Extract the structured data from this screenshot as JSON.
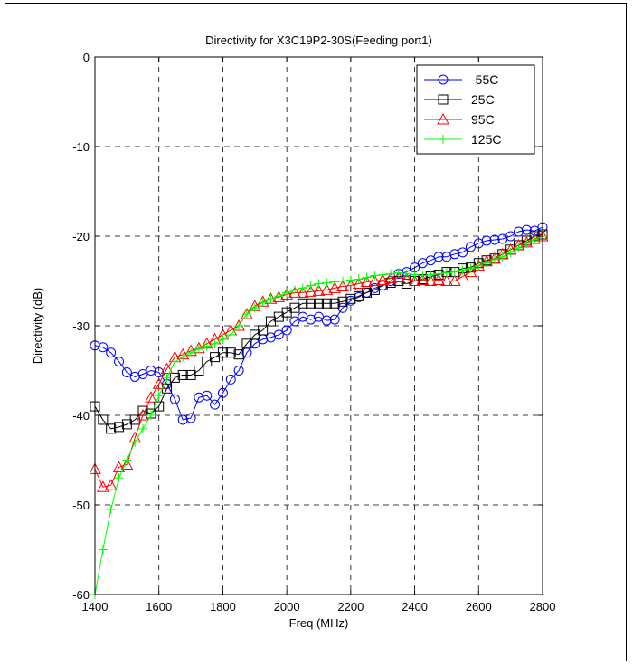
{
  "chart_data": {
    "type": "line",
    "title": "Directivity for X3C19P2-30S(Feeding port1)",
    "xlabel": "Freq (MHz)",
    "ylabel": "Directivity (dB)",
    "xlim": [
      1400,
      2800
    ],
    "ylim": [
      -60,
      0
    ],
    "xticks": [
      1400,
      1600,
      1800,
      2000,
      2200,
      2400,
      2600,
      2800
    ],
    "yticks": [
      0,
      -10,
      -20,
      -30,
      -40,
      -50,
      -60
    ],
    "xtick_labels": [
      "1400",
      "1600",
      "1800",
      "2000",
      "2200",
      "2400",
      "2600",
      "2800"
    ],
    "ytick_labels": [
      "0",
      "-10",
      "-20",
      "-30",
      "-40",
      "-50",
      "-60"
    ],
    "grid": true,
    "grid_style": "dashed",
    "legend_position": "top-right",
    "series": [
      {
        "name": "-55C",
        "color": "#0000ff",
        "marker": "circle",
        "x": [
          1400,
          1425,
          1450,
          1475,
          1500,
          1525,
          1550,
          1575,
          1600,
          1625,
          1650,
          1675,
          1700,
          1725,
          1750,
          1775,
          1800,
          1825,
          1850,
          1875,
          1900,
          1925,
          1950,
          1975,
          2000,
          2025,
          2050,
          2075,
          2100,
          2125,
          2150,
          2175,
          2200,
          2225,
          2250,
          2275,
          2300,
          2325,
          2350,
          2375,
          2400,
          2425,
          2450,
          2475,
          2500,
          2525,
          2550,
          2575,
          2600,
          2625,
          2650,
          2675,
          2700,
          2725,
          2750,
          2775,
          2800
        ],
        "y": [
          -32.2,
          -32.4,
          -33.0,
          -34.0,
          -35.2,
          -35.7,
          -35.4,
          -35.0,
          -35.2,
          -36.5,
          -38.2,
          -40.5,
          -40.3,
          -38.0,
          -37.8,
          -38.8,
          -37.5,
          -36.0,
          -35.0,
          -33.0,
          -32.0,
          -31.5,
          -31.3,
          -31.0,
          -30.5,
          -29.5,
          -29.0,
          -29.3,
          -29.0,
          -29.4,
          -29.3,
          -28.0,
          -27.2,
          -26.8,
          -26.3,
          -25.8,
          -25.5,
          -25.0,
          -24.2,
          -24.0,
          -23.5,
          -23.0,
          -22.7,
          -22.3,
          -22.3,
          -22.0,
          -21.8,
          -21.2,
          -20.8,
          -20.5,
          -20.4,
          -20.3,
          -20.0,
          -19.5,
          -19.3,
          -19.4,
          -19.0
        ]
      },
      {
        "name": "25C",
        "color": "#000000",
        "marker": "square",
        "x": [
          1400,
          1425,
          1450,
          1475,
          1500,
          1525,
          1550,
          1575,
          1600,
          1625,
          1650,
          1675,
          1700,
          1725,
          1750,
          1775,
          1800,
          1825,
          1850,
          1875,
          1900,
          1925,
          1950,
          1975,
          2000,
          2025,
          2050,
          2075,
          2100,
          2125,
          2150,
          2175,
          2200,
          2225,
          2250,
          2275,
          2300,
          2325,
          2350,
          2375,
          2400,
          2425,
          2450,
          2475,
          2500,
          2525,
          2550,
          2575,
          2600,
          2625,
          2650,
          2675,
          2700,
          2725,
          2750,
          2775,
          2800
        ],
        "y": [
          -39.0,
          -40.5,
          -41.5,
          -41.3,
          -41.0,
          -40.5,
          -39.5,
          -39.8,
          -39.0,
          -37.0,
          -35.8,
          -35.5,
          -35.5,
          -35.0,
          -34.0,
          -33.5,
          -33.0,
          -33.0,
          -33.2,
          -32.0,
          -31.0,
          -30.5,
          -29.5,
          -29.0,
          -28.5,
          -28.0,
          -27.5,
          -27.5,
          -27.5,
          -27.5,
          -27.5,
          -27.3,
          -27.0,
          -26.7,
          -26.3,
          -26.0,
          -25.5,
          -25.2,
          -25.0,
          -25.3,
          -25.0,
          -24.8,
          -24.5,
          -24.3,
          -24.0,
          -24.0,
          -23.6,
          -23.5,
          -23.0,
          -22.7,
          -22.5,
          -22.0,
          -21.5,
          -21.0,
          -20.5,
          -20.0,
          -19.8
        ]
      },
      {
        "name": "95C",
        "color": "#ff0000",
        "marker": "triangle",
        "x": [
          1400,
          1425,
          1450,
          1475,
          1500,
          1525,
          1550,
          1575,
          1600,
          1625,
          1650,
          1675,
          1700,
          1725,
          1750,
          1775,
          1800,
          1825,
          1850,
          1875,
          1900,
          1925,
          1950,
          1975,
          2000,
          2025,
          2050,
          2075,
          2100,
          2125,
          2150,
          2175,
          2200,
          2225,
          2250,
          2275,
          2300,
          2325,
          2350,
          2375,
          2400,
          2425,
          2450,
          2475,
          2500,
          2525,
          2550,
          2575,
          2600,
          2625,
          2650,
          2675,
          2700,
          2725,
          2750,
          2775,
          2800
        ],
        "y": [
          -46.0,
          -48.0,
          -47.8,
          -45.8,
          -45.5,
          -42.5,
          -40.0,
          -38.0,
          -36.5,
          -34.8,
          -33.5,
          -33.2,
          -32.8,
          -32.5,
          -32.0,
          -31.5,
          -31.0,
          -30.5,
          -30.0,
          -28.7,
          -27.8,
          -27.3,
          -27.0,
          -26.8,
          -26.5,
          -26.3,
          -26.3,
          -26.2,
          -26.1,
          -26.0,
          -25.8,
          -25.6,
          -25.5,
          -25.3,
          -25.1,
          -25.0,
          -24.9,
          -24.7,
          -24.6,
          -24.8,
          -25.0,
          -24.9,
          -25.0,
          -24.9,
          -25.0,
          -25.0,
          -24.5,
          -24.0,
          -23.3,
          -22.8,
          -22.5,
          -22.0,
          -21.5,
          -21.0,
          -20.7,
          -20.3,
          -20.0
        ]
      },
      {
        "name": "125C",
        "color": "#00ff00",
        "marker": "plus",
        "x": [
          1400,
          1425,
          1450,
          1475,
          1500,
          1525,
          1550,
          1575,
          1600,
          1625,
          1650,
          1675,
          1700,
          1725,
          1750,
          1775,
          1800,
          1825,
          1850,
          1875,
          1900,
          1925,
          1950,
          1975,
          2000,
          2025,
          2050,
          2075,
          2100,
          2125,
          2150,
          2175,
          2200,
          2225,
          2250,
          2275,
          2300,
          2325,
          2350,
          2375,
          2400,
          2425,
          2450,
          2475,
          2500,
          2525,
          2550,
          2575,
          2600,
          2625,
          2650,
          2675,
          2700,
          2725,
          2750,
          2775,
          2800
        ],
        "y": [
          -60.0,
          -55.0,
          -50.5,
          -47.0,
          -45.0,
          -43.0,
          -41.5,
          -40.0,
          -37.8,
          -35.8,
          -34.0,
          -33.5,
          -33.0,
          -32.6,
          -32.3,
          -32.0,
          -31.5,
          -31.0,
          -30.0,
          -28.7,
          -28.0,
          -27.4,
          -27.0,
          -26.7,
          -26.3,
          -26.0,
          -25.8,
          -25.5,
          -25.3,
          -25.2,
          -25.1,
          -25.0,
          -24.9,
          -24.8,
          -24.6,
          -24.4,
          -24.3,
          -24.2,
          -24.1,
          -24.2,
          -24.3,
          -24.4,
          -24.3,
          -24.2,
          -24.1,
          -24.0,
          -23.8,
          -23.6,
          -23.3,
          -23.0,
          -22.6,
          -22.3,
          -21.8,
          -21.3,
          -20.8,
          -20.4,
          -20.0
        ]
      }
    ]
  }
}
